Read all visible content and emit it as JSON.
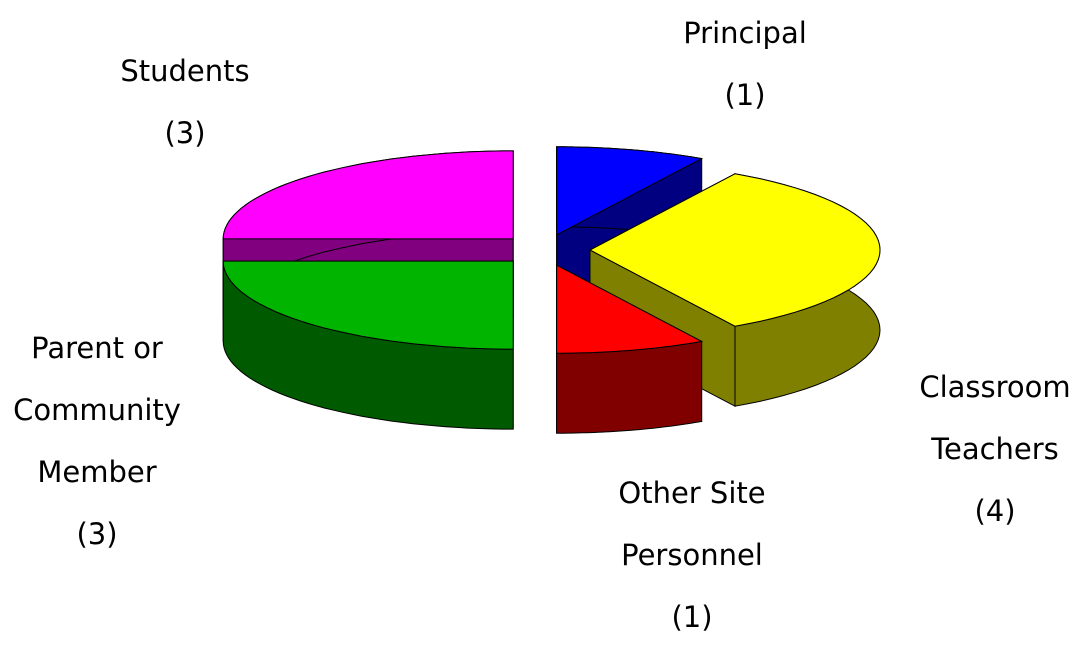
{
  "chart_data": {
    "type": "pie3d",
    "categories": [
      "Principal",
      "Classroom Teachers",
      "Other Site Personnel",
      "Parent or Community Member",
      "Students"
    ],
    "values": [
      1,
      4,
      1,
      3,
      3
    ],
    "value_labels": [
      "(1)",
      "(4)",
      "(1)",
      "(3)",
      "(3)"
    ],
    "colors": [
      "#0000ff",
      "#ffff00",
      "#ff0000",
      "#00b400",
      "#ff00ff"
    ],
    "side_colors": [
      "#000080",
      "#808000",
      "#800000",
      "#005a00",
      "#800080"
    ]
  }
}
